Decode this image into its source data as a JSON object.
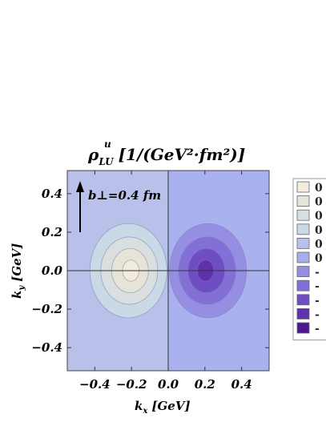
{
  "chart_data": {
    "type": "heatmap",
    "subtype": "contour",
    "title": {
      "rho": "ρ",
      "superscript": "u",
      "subscript": "LU",
      "units": "[1/(GeV²·fm²)]"
    },
    "xlabel": "k",
    "xlabel_sub": "x",
    "xlabel_units": "[GeV]",
    "ylabel": "k",
    "ylabel_sub": "y",
    "ylabel_units": "[GeV]",
    "xlim": [
      -0.55,
      0.55
    ],
    "ylim": [
      -0.52,
      0.52
    ],
    "x_ticks": [
      {
        "value": -0.4,
        "label": "−0.4"
      },
      {
        "value": -0.2,
        "label": "−0.2"
      },
      {
        "value": 0.0,
        "label": "0.0"
      },
      {
        "value": 0.2,
        "label": "0.2"
      },
      {
        "value": 0.4,
        "label": "0.4"
      }
    ],
    "y_ticks": [
      {
        "value": 0.4,
        "label": "0.4"
      },
      {
        "value": 0.2,
        "label": "0.2"
      },
      {
        "value": 0.0,
        "label": "0.0"
      },
      {
        "value": -0.2,
        "label": "−0.2"
      },
      {
        "value": -0.4,
        "label": "−0.4"
      }
    ],
    "annotation": {
      "text": "b⊥=0.4 fm",
      "arrow_direction": "up"
    },
    "grid": false,
    "legend_position": "right",
    "legend": [
      {
        "label": "0",
        "color": "#f3ebdb"
      },
      {
        "label": "0",
        "color": "#e6e4d7"
      },
      {
        "label": "0",
        "color": "#d8dfde"
      },
      {
        "label": "0",
        "color": "#c9d9e6"
      },
      {
        "label": "0",
        "color": "#b5c3ea"
      },
      {
        "label": "0",
        "color": "#a5aded"
      },
      {
        "label": "-",
        "color": "#968ee3"
      },
      {
        "label": "-",
        "color": "#8370d6"
      },
      {
        "label": "-",
        "color": "#6f4dc3"
      },
      {
        "label": "-",
        "color": "#5e32ac"
      },
      {
        "label": "-",
        "color": "#4b1792"
      }
    ],
    "background_colors": {
      "left_half": "#b9c1ea",
      "right_half": "#a9b2ef"
    },
    "contours": {
      "positive_lobe": {
        "center": [
          -0.2,
          0.0
        ],
        "levels": [
          {
            "rx": 0.21,
            "ry": 0.245,
            "color": "#c9d9e6"
          },
          {
            "rx": 0.155,
            "ry": 0.175,
            "color": "#d8dfde"
          },
          {
            "rx": 0.1,
            "ry": 0.115,
            "color": "#e6e4d7"
          },
          {
            "rx": 0.045,
            "ry": 0.055,
            "color": "#f3ebdb"
          }
        ]
      },
      "negative_lobe": {
        "center": [
          0.2,
          0.0
        ],
        "levels": [
          {
            "rx": 0.21,
            "ry": 0.245,
            "color": "#968ee3"
          },
          {
            "rx": 0.155,
            "ry": 0.175,
            "color": "#8370d6"
          },
          {
            "rx": 0.1,
            "ry": 0.115,
            "color": "#6f4dc3"
          },
          {
            "rx": 0.045,
            "ry": 0.055,
            "color": "#5e32ac"
          }
        ]
      }
    }
  }
}
